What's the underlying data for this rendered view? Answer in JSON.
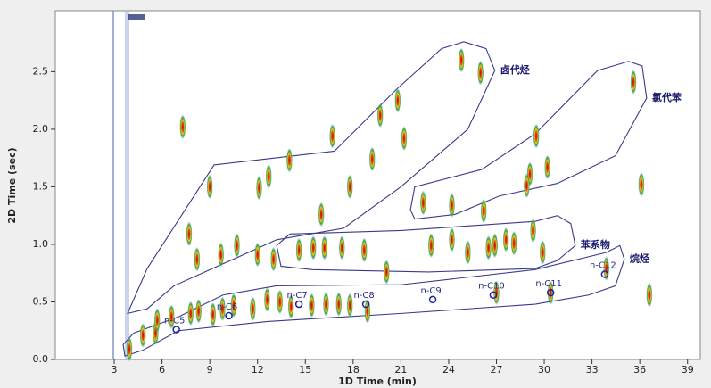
{
  "chart_data": {
    "type": "scatter",
    "xlabel": "1D Time (min)",
    "ylabel": "2D Time (sec)",
    "xlim": [
      -0.7,
      39.8
    ],
    "ylim": [
      0,
      3.03
    ],
    "xticks": [
      3,
      6,
      9,
      12,
      15,
      18,
      21,
      24,
      27,
      30,
      33,
      36,
      39
    ],
    "yticks": [
      {
        "value": 0,
        "label": "0.0"
      },
      0.5,
      {
        "value": 1,
        "label": "1.0"
      },
      1.5,
      {
        "value": 2,
        "label": "2.0"
      },
      2.5
    ],
    "peaks": {
      "x": [
        24.8,
        26.0,
        20.8,
        19.7,
        21.2,
        16.7,
        14.0,
        19.2,
        12.7,
        12.1,
        9.0,
        17.8,
        16.0,
        22.4,
        24.2,
        26.2,
        35.6,
        29.5,
        30.2,
        29.1,
        28.9,
        36.1,
        7.7,
        9.7,
        10.7,
        8.2,
        12.0,
        13.0,
        14.6,
        15.5,
        16.2,
        17.3,
        18.7,
        20.1,
        22.9,
        24.2,
        25.2,
        26.5,
        26.9,
        27.6,
        28.1,
        29.3,
        29.9,
        33.9,
        36.6,
        7.3,
        4.8,
        5.6,
        6.6,
        7.8,
        8.3,
        9.2,
        9.8,
        10.5,
        11.7,
        12.6,
        13.4,
        14.1,
        15.4,
        16.3,
        17.1,
        17.8,
        18.9,
        27.0,
        30.4,
        5.7,
        3.95
      ],
      "y": [
        2.6,
        2.49,
        2.25,
        2.12,
        1.92,
        1.94,
        1.73,
        1.74,
        1.59,
        1.49,
        1.5,
        1.5,
        1.26,
        1.36,
        1.34,
        1.29,
        2.41,
        1.94,
        1.67,
        1.61,
        1.51,
        1.52,
        1.09,
        0.91,
        0.99,
        0.87,
        0.91,
        0.87,
        0.95,
        0.97,
        0.97,
        0.97,
        0.95,
        0.76,
        0.99,
        1.04,
        0.93,
        0.97,
        0.99,
        1.04,
        1.01,
        1.12,
        0.93,
        0.79,
        0.56,
        2.02,
        0.21,
        0.23,
        0.37,
        0.4,
        0.42,
        0.39,
        0.44,
        0.47,
        0.44,
        0.52,
        0.5,
        0.46,
        0.47,
        0.48,
        0.48,
        0.47,
        0.42,
        0.58,
        0.58,
        0.34,
        0.09
      ]
    },
    "alkanes": {
      "labels": [
        "n-C5",
        "n-C6",
        "n-C7",
        "n-C8",
        "n-C9",
        "n-C10",
        "n-C11",
        "n-C12"
      ],
      "x": [
        6.9,
        10.2,
        14.6,
        18.8,
        23.0,
        26.8,
        30.4,
        33.8
      ],
      "y": [
        0.26,
        0.38,
        0.48,
        0.48,
        0.52,
        0.56,
        0.58,
        0.74
      ]
    },
    "regions": [
      {
        "name": "卤代烃",
        "x": [
          3.84,
          5.07,
          9.27,
          16.83,
          20.75,
          23.55,
          24.95,
          26.35,
          26.9,
          25.2,
          21.0,
          17.4,
          13.2,
          6.75,
          5.07
        ],
        "y": [
          0.4,
          0.79,
          1.69,
          1.81,
          2.35,
          2.7,
          2.76,
          2.7,
          2.51,
          2.0,
          1.5,
          1.14,
          1.04,
          0.64,
          0.44
        ]
      },
      {
        "name": "氯代苯",
        "x": [
          21.6,
          21.87,
          26.07,
          29.43,
          33.35,
          35.3,
          36.15,
          36.43,
          34.47,
          30.83,
          27.19,
          24.39,
          21.87
        ],
        "y": [
          1.3,
          1.5,
          1.65,
          1.96,
          2.51,
          2.59,
          2.55,
          2.27,
          1.77,
          1.53,
          1.42,
          1.26,
          1.22
        ]
      },
      {
        "name": "苯系物",
        "x": [
          13.2,
          14.03,
          21.03,
          29.43,
          30.83,
          31.67,
          31.95,
          30.83,
          29.43,
          22.71,
          15.43,
          13.47
        ],
        "y": [
          0.99,
          1.09,
          1.12,
          1.2,
          1.25,
          1.18,
          0.99,
          0.86,
          0.79,
          0.76,
          0.78,
          0.81
        ]
      },
      {
        "name": "烷烃",
        "x": [
          3.56,
          4.23,
          7.03,
          9.83,
          13.19,
          21.03,
          29.43,
          33.9,
          34.75,
          35.03,
          34.47,
          32.79,
          29.43,
          21.03,
          12.63,
          7.03,
          4.79,
          3.67
        ],
        "y": [
          0.13,
          0.23,
          0.37,
          0.56,
          0.64,
          0.65,
          0.78,
          0.93,
          0.99,
          0.87,
          0.64,
          0.56,
          0.48,
          0.4,
          0.33,
          0.25,
          0.08,
          0.03
        ]
      }
    ]
  }
}
